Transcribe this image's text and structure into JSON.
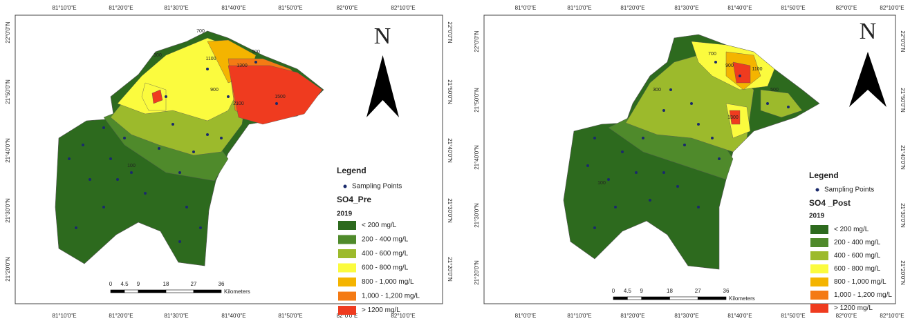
{
  "maps": [
    {
      "lon_labels": [
        "81°10'0\"E",
        "81°20'0\"E",
        "81°30'0\"E",
        "81°40'0\"E",
        "81°50'0\"E",
        "82°0'0\"E",
        "82°10'0\"E"
      ],
      "lat_labels": [
        "22°0'0\"N",
        "21°50'0\"N",
        "21°40'0\"N",
        "21°30'0\"N",
        "21°20'0\"N"
      ],
      "north": "N",
      "legend": {
        "title": "Legend",
        "points": "Sampling Points",
        "layer": "SO4_Pre",
        "year": "2019",
        "classes": [
          {
            "label": "< 200 mg/L",
            "color": "#2d6a1e"
          },
          {
            "label": "200 - 400 mg/L",
            "color": "#4f8a2b"
          },
          {
            "label": "400 - 600 mg/L",
            "color": "#9cba2c"
          },
          {
            "label": "600 - 800 mg/L",
            "color": "#fbfb3e"
          },
          {
            "label": "800 - 1,000 mg/L",
            "color": "#f4b400"
          },
          {
            "label": "1,000 - 1,200 mg/L",
            "color": "#f47a14"
          },
          {
            "label": "> 1200 mg/L",
            "color": "#ef3b1f"
          }
        ]
      },
      "scale": {
        "ticks": [
          "0",
          "4.5",
          "9",
          "18",
          "27",
          "36"
        ],
        "unit": "Kilometers"
      },
      "contour_labels": [
        "700",
        "500",
        "1100",
        "1300",
        "300",
        "900",
        "2100",
        "1500",
        "100"
      ]
    },
    {
      "lon_labels": [
        "81°0'0\"E",
        "81°10'0\"E",
        "81°20'0\"E",
        "81°30'0\"E",
        "81°40'0\"E",
        "81°50'0\"E",
        "82°0'0\"E",
        "82°10'0\"E"
      ],
      "lat_labels": [
        "22°0'0\"N",
        "21°50'0\"N",
        "21°40'0\"N",
        "21°30'0\"N",
        "21°20'0\"N"
      ],
      "north": "N",
      "legend": {
        "title": "Legend",
        "points": "Sampling Points",
        "layer": "SO4 _Post",
        "year": "2019",
        "classes": [
          {
            "label": "< 200 mg/L",
            "color": "#2d6a1e"
          },
          {
            "label": "200 - 400 mg/L",
            "color": "#4f8a2b"
          },
          {
            "label": "400 - 600 mg/L",
            "color": "#9cba2c"
          },
          {
            "label": "600 - 800 mg/L",
            "color": "#fbfb3e"
          },
          {
            "label": "800 - 1,000 mg/L",
            "color": "#f4b400"
          },
          {
            "label": "1,000 - 1,200 mg/L",
            "color": "#f47a14"
          },
          {
            "label": ">  1200 mg/L",
            "color": "#ef3b1f"
          }
        ]
      },
      "scale": {
        "ticks": [
          "0",
          "4.5",
          "9",
          "18",
          "27",
          "36"
        ],
        "unit": "Kilometers"
      },
      "contour_labels": [
        "700",
        "900",
        "1100",
        "300",
        "500",
        "1300",
        "100"
      ]
    }
  ]
}
